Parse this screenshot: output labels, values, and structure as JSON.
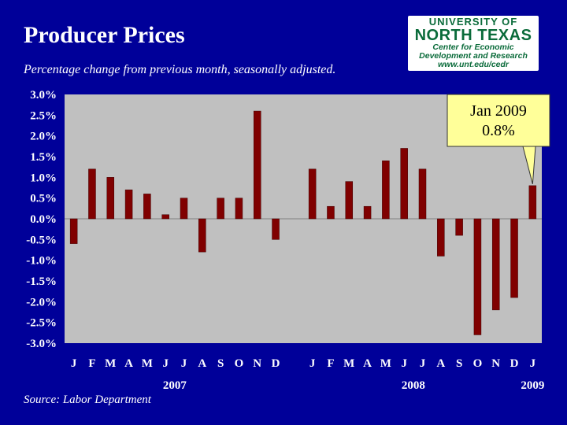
{
  "slide": {
    "title": "Producer Prices",
    "subtitle": "Percentage change from previous month, seasonally adjusted.",
    "source": "Source:  Labor Department",
    "logo": {
      "line1": "UNIVERSITY OF",
      "line2": "NORTH TEXAS",
      "line3": "Center for Economic",
      "line4": "Development and Research",
      "line5": "www.unt.edu/cedr"
    },
    "callout": {
      "line1": "Jan 2009",
      "line2": "0.8%"
    }
  },
  "colors": {
    "background": "#000099",
    "plot_area": "#c0c0c0",
    "bar": "#800000",
    "callout": "#ffff99"
  },
  "chart_data": {
    "type": "bar",
    "title": "Producer Prices",
    "subtitle": "Percentage change from previous month, seasonally adjusted.",
    "xlabel": "",
    "ylabel": "",
    "ylim": [
      -3.0,
      3.0
    ],
    "yticks": [
      "3.0%",
      "2.5%",
      "2.0%",
      "1.5%",
      "1.0%",
      "0.5%",
      "0.0%",
      "-0.5%",
      "-1.0%",
      "-1.5%",
      "-2.0%",
      "-2.5%",
      "-3.0%"
    ],
    "ytick_values": [
      3.0,
      2.5,
      2.0,
      1.5,
      1.0,
      0.5,
      0.0,
      -0.5,
      -1.0,
      -1.5,
      -2.0,
      -2.5,
      -3.0
    ],
    "slot_count": 26,
    "categories": [
      "J",
      "F",
      "M",
      "A",
      "M",
      "J",
      "J",
      "A",
      "S",
      "O",
      "N",
      "D",
      "",
      "J",
      "F",
      "M",
      "A",
      "M",
      "J",
      "J",
      "A",
      "S",
      "O",
      "N",
      "D",
      "J"
    ],
    "values": [
      -0.6,
      1.2,
      1.0,
      0.7,
      0.6,
      0.1,
      0.5,
      -0.8,
      0.5,
      0.5,
      2.6,
      -0.5,
      null,
      1.2,
      0.3,
      0.9,
      0.3,
      1.4,
      1.7,
      1.2,
      -0.9,
      -0.4,
      -2.8,
      -2.2,
      -1.9,
      0.8
    ],
    "year_labels": [
      {
        "label": "2007",
        "slot": 5.5
      },
      {
        "label": "2008",
        "slot": 18.5
      },
      {
        "label": "2009",
        "slot": 25
      }
    ],
    "annotation": {
      "text": "Jan 2009 0.8%",
      "slot": 25
    },
    "grid": false,
    "legend": "none"
  }
}
